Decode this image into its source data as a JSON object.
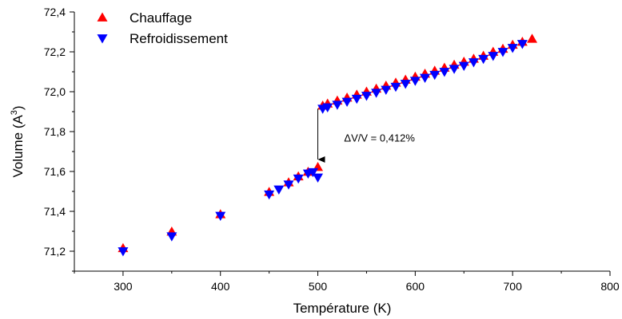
{
  "chart_data": {
    "type": "scatter",
    "title": "",
    "xlabel": "Température (K)",
    "ylabel_main": "Volume (A",
    "ylabel_sup": "3",
    "ylabel_close": ")",
    "xlim": [
      250,
      800
    ],
    "ylim": [
      71.1,
      72.4
    ],
    "x_ticks": [
      300,
      400,
      500,
      600,
      700,
      800
    ],
    "y_ticks": [
      71.2,
      71.4,
      71.6,
      71.8,
      72.0,
      72.2,
      72.4
    ],
    "x_tick_labels": [
      "300",
      "400",
      "500",
      "600",
      "700",
      "800"
    ],
    "y_tick_labels": [
      "71,2",
      "71,4",
      "71,6",
      "71,8",
      "72,0",
      "72,2",
      "72,4"
    ],
    "grid": false,
    "legend_position": "top-left",
    "series": [
      {
        "name": "Chauffage",
        "marker": "triangle-up",
        "color": "#ff0000",
        "points": [
          [
            300,
            71.215
          ],
          [
            350,
            71.298
          ],
          [
            400,
            71.385
          ],
          [
            450,
            71.497
          ],
          [
            470,
            71.545
          ],
          [
            480,
            71.575
          ],
          [
            490,
            71.598
          ],
          [
            500,
            71.622
          ],
          [
            505,
            71.93
          ],
          [
            510,
            71.94
          ],
          [
            520,
            71.955
          ],
          [
            530,
            71.97
          ],
          [
            540,
            71.985
          ],
          [
            550,
            72.0
          ],
          [
            560,
            72.015
          ],
          [
            570,
            72.03
          ],
          [
            580,
            72.045
          ],
          [
            590,
            72.06
          ],
          [
            600,
            72.075
          ],
          [
            610,
            72.09
          ],
          [
            620,
            72.105
          ],
          [
            630,
            72.12
          ],
          [
            640,
            72.135
          ],
          [
            650,
            72.15
          ],
          [
            660,
            72.165
          ],
          [
            670,
            72.18
          ],
          [
            680,
            72.2
          ],
          [
            690,
            72.215
          ],
          [
            700,
            72.235
          ],
          [
            710,
            72.25
          ],
          [
            720,
            72.265
          ]
        ]
      },
      {
        "name": "Refroidissement",
        "marker": "triangle-down",
        "color": "#0000ff",
        "points": [
          [
            300,
            71.2
          ],
          [
            350,
            71.275
          ],
          [
            400,
            71.378
          ],
          [
            450,
            71.485
          ],
          [
            460,
            71.51
          ],
          [
            470,
            71.535
          ],
          [
            480,
            71.565
          ],
          [
            490,
            71.59
          ],
          [
            495,
            71.597
          ],
          [
            500,
            71.57
          ],
          [
            505,
            71.915
          ],
          [
            510,
            71.922
          ],
          [
            520,
            71.935
          ],
          [
            530,
            71.95
          ],
          [
            540,
            71.965
          ],
          [
            550,
            71.98
          ],
          [
            560,
            71.995
          ],
          [
            570,
            72.01
          ],
          [
            580,
            72.025
          ],
          [
            590,
            72.04
          ],
          [
            600,
            72.055
          ],
          [
            610,
            72.07
          ],
          [
            620,
            72.085
          ],
          [
            630,
            72.1
          ],
          [
            640,
            72.115
          ],
          [
            650,
            72.13
          ],
          [
            660,
            72.148
          ],
          [
            670,
            72.165
          ],
          [
            680,
            72.18
          ],
          [
            690,
            72.2
          ],
          [
            700,
            72.22
          ],
          [
            710,
            72.24
          ]
        ]
      }
    ],
    "annotation": {
      "text": "ΔV/V = 0,412%",
      "arrow_x": 500,
      "arrow_from_y": 71.915,
      "arrow_to_y": 71.66,
      "text_x": 527,
      "text_y": 71.75
    }
  }
}
